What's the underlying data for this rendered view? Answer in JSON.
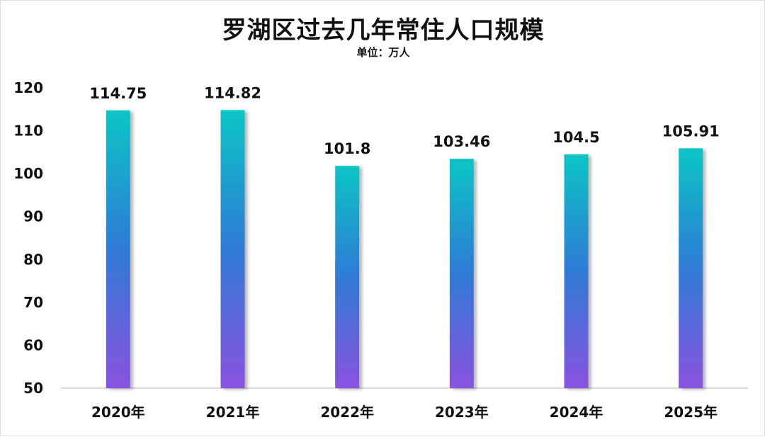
{
  "chart_data": {
    "type": "bar",
    "title": "罗湖区过去几年常住人口规模",
    "subtitle": "单位：万人",
    "categories": [
      "2020年",
      "2021年",
      "2022年",
      "2023年",
      "2024年",
      "2025年"
    ],
    "values": [
      114.75,
      114.82,
      101.8,
      103.46,
      104.5,
      105.91
    ],
    "data_labels": [
      "114.75",
      "114.82",
      "101.8",
      "103.46",
      "104.5",
      "105.91"
    ],
    "ylim": [
      50,
      120
    ],
    "yticks": [
      50,
      60,
      70,
      80,
      90,
      100,
      110,
      120
    ],
    "grid": false,
    "legend": "none",
    "colors": {
      "bar_top": "#0bc5c5",
      "bar_mid": "#2f7bd6",
      "bar_bottom": "#8a52e0",
      "axis": "#d0d0d0",
      "text": "#111111"
    }
  }
}
